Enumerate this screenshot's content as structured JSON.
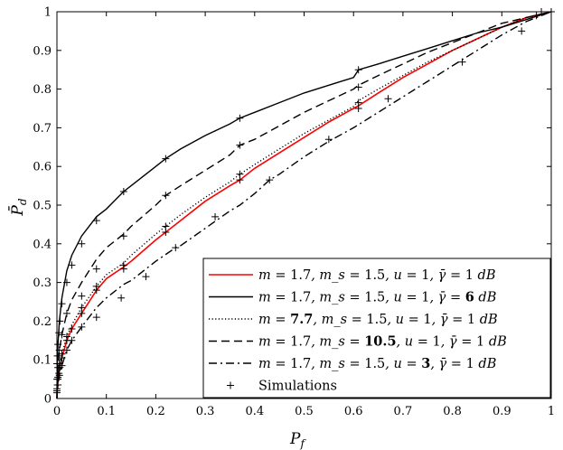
{
  "chart_data": {
    "type": "line",
    "xlabel": "P_f",
    "ylabel": "P̄_d",
    "xlim": [
      0,
      1
    ],
    "ylim": [
      0,
      1
    ],
    "xticks": [
      "0",
      "0.1",
      "0.2",
      "0.3",
      "0.4",
      "0.5",
      "0.6",
      "0.7",
      "0.8",
      "0.9",
      "1"
    ],
    "yticks": [
      "0",
      "0.1",
      "0.2",
      "0.3",
      "0.4",
      "0.5",
      "0.6",
      "0.7",
      "0.8",
      "0.9",
      "1"
    ],
    "grid": false,
    "legend_position": "bottom-right",
    "series": [
      {
        "name": "m = 1.7, m_s = 1.5, u = 1, γ̄ = 1 dB",
        "color": "#ff0000",
        "dash": "solid",
        "x": [
          0,
          0.0005,
          0.002,
          0.005,
          0.01,
          0.02,
          0.03,
          0.05,
          0.08,
          0.1,
          0.135,
          0.15,
          0.2,
          0.22,
          0.25,
          0.3,
          0.35,
          0.37,
          0.4,
          0.45,
          0.5,
          0.55,
          0.6,
          0.61,
          0.65,
          0.7,
          0.75,
          0.8,
          0.85,
          0.9,
          0.95,
          1
        ],
        "y": [
          0,
          0.02,
          0.045,
          0.075,
          0.105,
          0.15,
          0.18,
          0.22,
          0.28,
          0.31,
          0.34,
          0.355,
          0.41,
          0.43,
          0.46,
          0.51,
          0.55,
          0.565,
          0.595,
          0.635,
          0.675,
          0.715,
          0.75,
          0.757,
          0.79,
          0.83,
          0.865,
          0.9,
          0.93,
          0.96,
          0.985,
          1
        ]
      },
      {
        "name": "m = 1.7, m_s = 1.5, u = 1, γ̄ = 6 dB",
        "color": "#000000",
        "dash": "solid",
        "x": [
          0,
          0.0005,
          0.002,
          0.005,
          0.01,
          0.02,
          0.03,
          0.05,
          0.08,
          0.1,
          0.135,
          0.15,
          0.2,
          0.22,
          0.25,
          0.3,
          0.35,
          0.37,
          0.4,
          0.45,
          0.5,
          0.55,
          0.6,
          0.61,
          0.65,
          0.7,
          0.75,
          0.8,
          0.85,
          0.9,
          0.95,
          1
        ],
        "y": [
          0,
          0.08,
          0.14,
          0.2,
          0.26,
          0.33,
          0.37,
          0.42,
          0.47,
          0.49,
          0.535,
          0.55,
          0.6,
          0.62,
          0.645,
          0.68,
          0.71,
          0.725,
          0.74,
          0.765,
          0.79,
          0.81,
          0.83,
          0.85,
          0.865,
          0.885,
          0.905,
          0.925,
          0.945,
          0.96,
          0.98,
          1
        ]
      },
      {
        "name": "m = 7.7, m_s = 1.5, u = 1, γ̄ = 1 dB",
        "color": "#000000",
        "dash": "dotted",
        "x": [
          0,
          0.0005,
          0.002,
          0.005,
          0.01,
          0.02,
          0.03,
          0.05,
          0.08,
          0.1,
          0.135,
          0.15,
          0.2,
          0.22,
          0.25,
          0.3,
          0.35,
          0.37,
          0.4,
          0.45,
          0.5,
          0.55,
          0.6,
          0.61,
          0.65,
          0.7,
          0.75,
          0.8,
          0.85,
          0.9,
          0.95,
          1
        ],
        "y": [
          0,
          0.025,
          0.05,
          0.085,
          0.115,
          0.16,
          0.19,
          0.235,
          0.29,
          0.32,
          0.35,
          0.37,
          0.425,
          0.445,
          0.475,
          0.52,
          0.56,
          0.58,
          0.605,
          0.645,
          0.685,
          0.72,
          0.755,
          0.77,
          0.8,
          0.835,
          0.87,
          0.9,
          0.93,
          0.96,
          0.985,
          1
        ]
      },
      {
        "name": "m = 1.7, m_s = 10.5, u = 1, γ̄ = 1 dB",
        "color": "#000000",
        "dash": "dashed",
        "x": [
          0,
          0.0005,
          0.002,
          0.005,
          0.01,
          0.02,
          0.03,
          0.05,
          0.08,
          0.1,
          0.135,
          0.15,
          0.2,
          0.22,
          0.25,
          0.3,
          0.35,
          0.37,
          0.4,
          0.45,
          0.5,
          0.55,
          0.6,
          0.61,
          0.65,
          0.7,
          0.75,
          0.8,
          0.85,
          0.9,
          0.95,
          1
        ],
        "y": [
          0,
          0.045,
          0.08,
          0.125,
          0.165,
          0.22,
          0.255,
          0.3,
          0.36,
          0.39,
          0.425,
          0.445,
          0.5,
          0.525,
          0.55,
          0.59,
          0.63,
          0.655,
          0.67,
          0.705,
          0.74,
          0.77,
          0.8,
          0.81,
          0.835,
          0.865,
          0.895,
          0.92,
          0.945,
          0.97,
          0.985,
          1
        ]
      },
      {
        "name": "m = 1.7, m_s = 1.5, u = 3, γ̄ = 1 dB",
        "color": "#000000",
        "dash": "dashdot",
        "x": [
          0,
          0.0005,
          0.002,
          0.005,
          0.01,
          0.02,
          0.03,
          0.05,
          0.08,
          0.1,
          0.135,
          0.15,
          0.2,
          0.24,
          0.25,
          0.3,
          0.35,
          0.37,
          0.4,
          0.43,
          0.45,
          0.5,
          0.55,
          0.6,
          0.65,
          0.7,
          0.75,
          0.8,
          0.85,
          0.9,
          0.95,
          1
        ],
        "y": [
          0,
          0.015,
          0.035,
          0.06,
          0.085,
          0.125,
          0.15,
          0.185,
          0.235,
          0.26,
          0.295,
          0.305,
          0.355,
          0.39,
          0.395,
          0.44,
          0.485,
          0.5,
          0.53,
          0.565,
          0.58,
          0.625,
          0.665,
          0.7,
          0.74,
          0.78,
          0.82,
          0.86,
          0.9,
          0.94,
          0.975,
          1
        ]
      }
    ],
    "simulations": {
      "name": "Simulations",
      "marker": "+",
      "points": [
        [
          0,
          0.02
        ],
        [
          0.001,
          0.035
        ],
        [
          0.002,
          0.05
        ],
        [
          0.004,
          0.065
        ],
        [
          0.006,
          0.08
        ],
        [
          0.01,
          0.105
        ],
        [
          0.02,
          0.15
        ],
        [
          0.03,
          0.18
        ],
        [
          0.05,
          0.22
        ],
        [
          0.08,
          0.28
        ],
        [
          0.135,
          0.335
        ],
        [
          0.22,
          0.43
        ],
        [
          0.37,
          0.565
        ],
        [
          0.61,
          0.75
        ],
        [
          1,
          1
        ],
        [
          0,
          0.09
        ],
        [
          0.001,
          0.11
        ],
        [
          0.002,
          0.14
        ],
        [
          0.004,
          0.17
        ],
        [
          0.006,
          0.2
        ],
        [
          0.01,
          0.245
        ],
        [
          0.02,
          0.3
        ],
        [
          0.03,
          0.345
        ],
        [
          0.05,
          0.4
        ],
        [
          0.08,
          0.46
        ],
        [
          0.135,
          0.535
        ],
        [
          0.22,
          0.62
        ],
        [
          0.37,
          0.725
        ],
        [
          0.61,
          0.85
        ],
        [
          0.98,
          1
        ],
        [
          0,
          0.025
        ],
        [
          0.002,
          0.055
        ],
        [
          0.005,
          0.09
        ],
        [
          0.01,
          0.115
        ],
        [
          0.02,
          0.16
        ],
        [
          0.05,
          0.235
        ],
        [
          0.08,
          0.29
        ],
        [
          0.135,
          0.345
        ],
        [
          0.22,
          0.445
        ],
        [
          0.37,
          0.58
        ],
        [
          0.61,
          0.765
        ],
        [
          0.97,
          0.99
        ],
        [
          0,
          0.05
        ],
        [
          0.002,
          0.08
        ],
        [
          0.005,
          0.125
        ],
        [
          0.01,
          0.165
        ],
        [
          0.02,
          0.22
        ],
        [
          0.05,
          0.265
        ],
        [
          0.08,
          0.335
        ],
        [
          0.135,
          0.42
        ],
        [
          0.22,
          0.525
        ],
        [
          0.37,
          0.655
        ],
        [
          0.61,
          0.805
        ],
        [
          0,
          0.015
        ],
        [
          0.002,
          0.035
        ],
        [
          0.005,
          0.06
        ],
        [
          0.01,
          0.085
        ],
        [
          0.02,
          0.125
        ],
        [
          0.03,
          0.15
        ],
        [
          0.05,
          0.185
        ],
        [
          0.08,
          0.21
        ],
        [
          0.13,
          0.26
        ],
        [
          0.18,
          0.315
        ],
        [
          0.24,
          0.39
        ],
        [
          0.32,
          0.47
        ],
        [
          0.43,
          0.565
        ],
        [
          0.55,
          0.67
        ],
        [
          0.67,
          0.775
        ],
        [
          0.82,
          0.87
        ],
        [
          0.94,
          0.95
        ]
      ]
    }
  }
}
